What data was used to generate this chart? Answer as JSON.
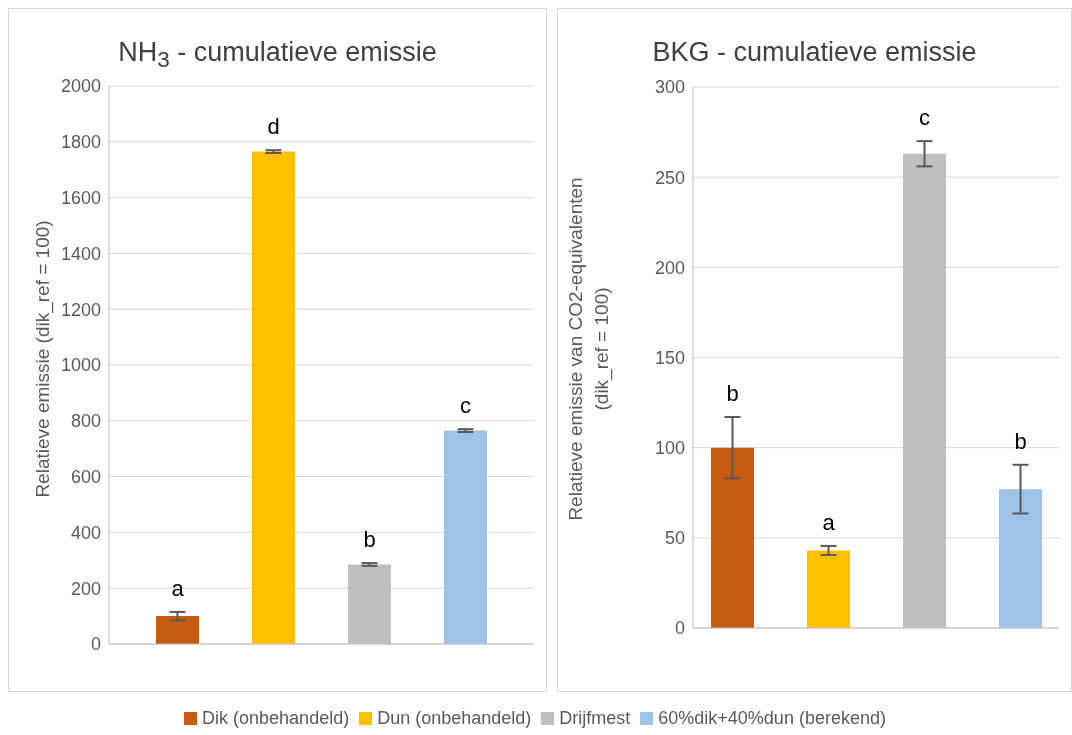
{
  "chart_data": [
    {
      "type": "bar",
      "title": "NH$_{3}$ - cumulatieve emissie",
      "ylabel": "Relatieve emissie (dik_ref = 100)",
      "categories": [
        null
      ],
      "ylim": [
        0,
        2000
      ],
      "yticks": [
        0,
        200,
        400,
        600,
        800,
        1000,
        1200,
        1400,
        1600,
        1800,
        2000
      ],
      "grid": "y",
      "legend": "bottom",
      "series": [
        {
          "name": "Dik (onbehandeld)",
          "color": "#c55a11",
          "values": [
            100
          ],
          "errors": [
            15
          ]
        },
        {
          "name": "Dun (onbehandeld)",
          "color": "#ffc000",
          "values": [
            1765
          ],
          "errors": [
            5
          ]
        },
        {
          "name": "Drijfmest",
          "color": "#bfbfbf",
          "values": [
            285
          ],
          "errors": [
            5
          ]
        },
        {
          "name": "60%dik+40%dun (berekend)",
          "color": "#9dc3e6",
          "values": [
            765
          ],
          "errors": [
            5
          ]
        }
      ],
      "annotations": [
        "a",
        "d",
        "b",
        "c"
      ]
    },
    {
      "type": "bar",
      "title": "BKG - cumulatieve emissie",
      "ylabel": "Relatieve emissie van CO2-equivalenten (dik_ref = 100)",
      "categories": [
        null
      ],
      "ylim": [
        0,
        300
      ],
      "yticks": [
        0,
        50,
        100,
        150,
        200,
        250,
        300
      ],
      "grid": "y",
      "series": [
        {
          "color": "#c55a11",
          "values": [
            100
          ],
          "errors": [
            17
          ]
        },
        {
          "color": "#ffc000",
          "values": [
            43
          ],
          "errors": [
            2.5
          ]
        },
        {
          "color": "#bfbfbf",
          "values": [
            263
          ],
          "errors": [
            7
          ]
        },
        {
          "color": "#9dc3e6",
          "values": [
            77
          ],
          "errors": [
            13.5
          ]
        }
      ],
      "annotations": [
        "b",
        "a",
        "c",
        "b"
      ]
    }
  ]
}
